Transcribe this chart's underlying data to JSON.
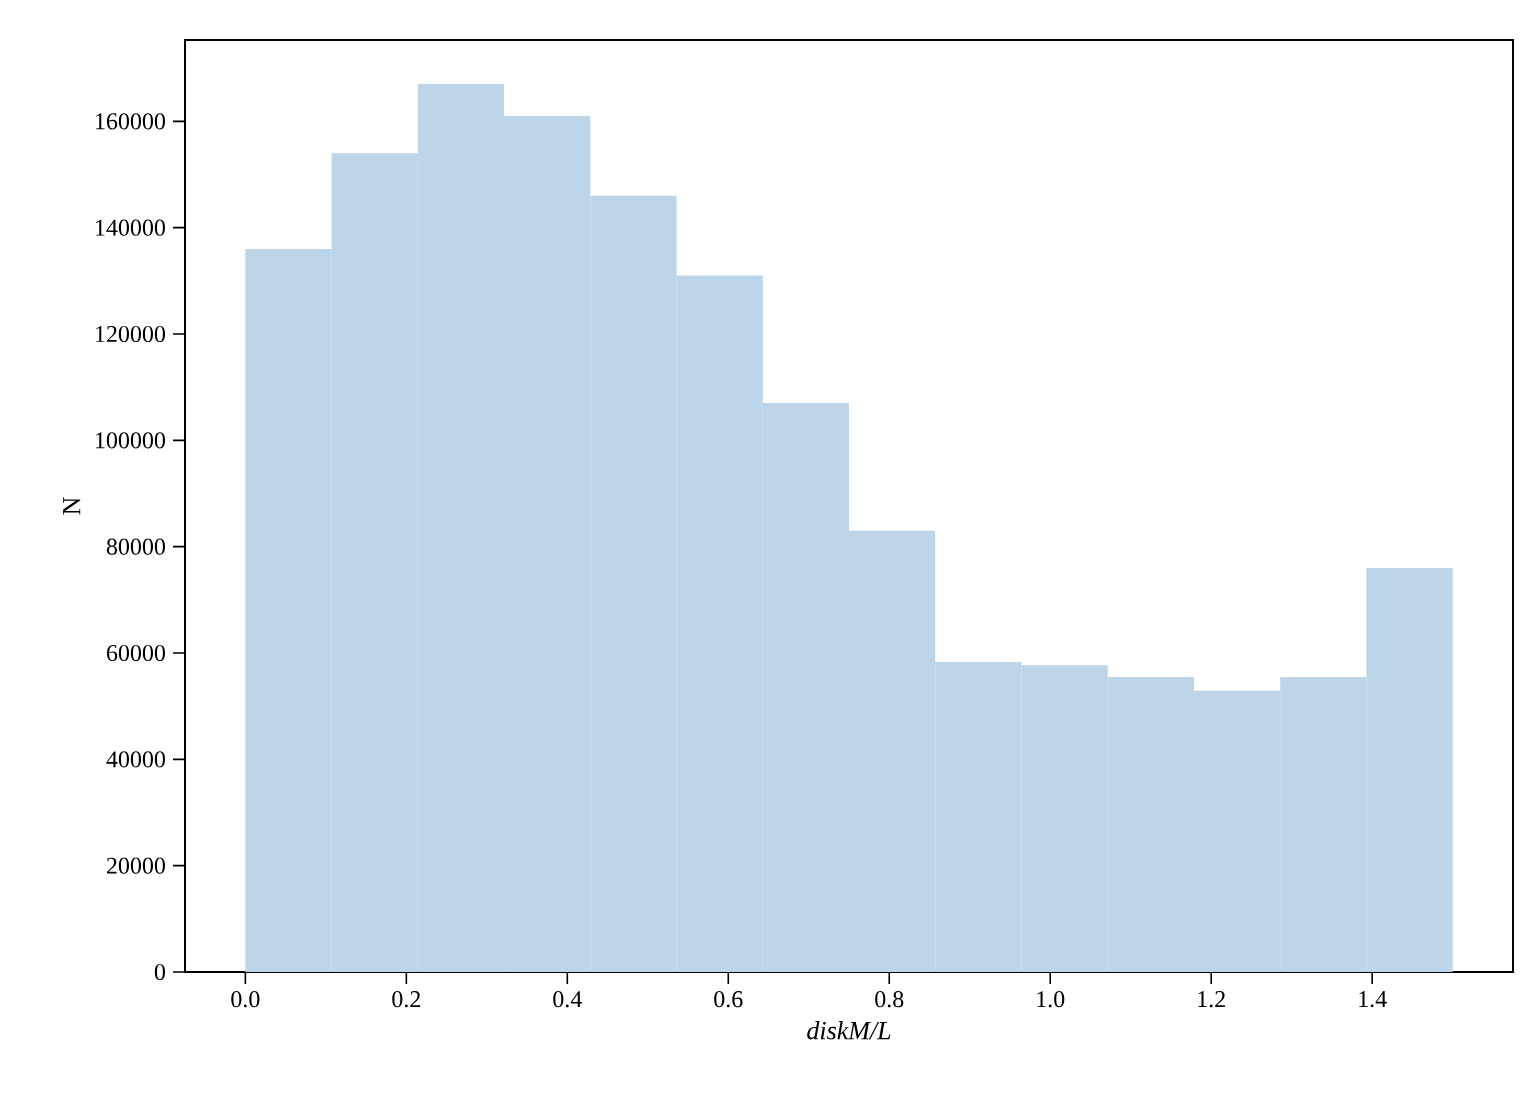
{
  "chart_data": {
    "type": "histogram",
    "xlabel": "diskM/L",
    "ylabel": "N",
    "bins": [
      0,
      0.1071,
      0.2143,
      0.3214,
      0.4286,
      0.5357,
      0.6429,
      0.75,
      0.8571,
      0.9643,
      1.0714,
      1.1786,
      1.2857,
      1.3929,
      1.5
    ],
    "values": [
      136000,
      154000,
      167000,
      161000,
      146000,
      131000,
      107000,
      83000,
      58300,
      57700,
      55500,
      52900,
      55500,
      76000
    ],
    "color": "#bcd5e8",
    "xlim": [
      -0.075,
      1.575
    ],
    "ylim": [
      0,
      175300
    ],
    "xticks": [
      {
        "value": 0,
        "label": "0.0"
      },
      0.2,
      0.4,
      0.6,
      0.8,
      {
        "value": 1,
        "label": "1.0"
      },
      1.2,
      1.4
    ],
    "yticks": [
      0,
      20000,
      40000,
      60000,
      80000,
      100000,
      120000,
      140000,
      160000
    ]
  }
}
